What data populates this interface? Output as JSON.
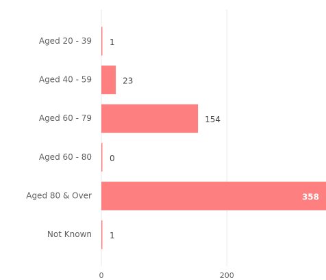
{
  "chart_data": {
    "type": "bar",
    "orientation": "horizontal",
    "categories": [
      "Aged 20 - 39",
      "Aged 40 - 59",
      "Aged 60 - 79",
      "Aged 60 - 80",
      "Aged 80 & Over",
      "Not Known"
    ],
    "values": [
      1,
      23,
      154,
      0,
      358,
      1
    ],
    "color": "#fd7f7f",
    "xlim": [
      0,
      358
    ],
    "xticks": [
      0,
      200
    ],
    "grid": true
  }
}
